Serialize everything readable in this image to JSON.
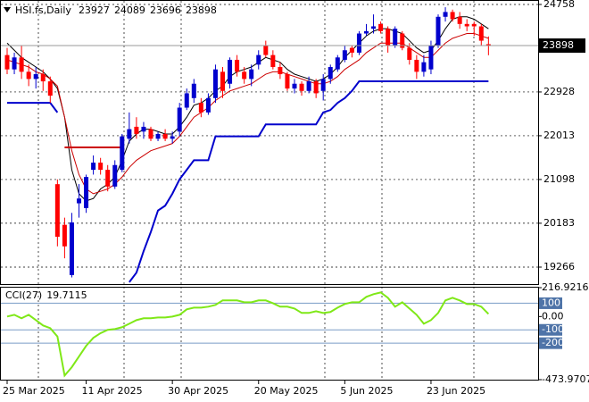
{
  "chart_data": {
    "type": "candlestick",
    "title": "HSI.fs,Daily",
    "categories": [
      "25 Mar 2025",
      null,
      null,
      null,
      null,
      null,
      null,
      null,
      null,
      null,
      null,
      "11 Apr 2025",
      null,
      null,
      null,
      null,
      null,
      null,
      null,
      null,
      null,
      null,
      null,
      "30 Apr 2025",
      null,
      null,
      null,
      null,
      null,
      null,
      null,
      null,
      null,
      null,
      null,
      "20 May 2025",
      null,
      null,
      null,
      null,
      null,
      null,
      null,
      null,
      null,
      null,
      null,
      "5 Jun 2025",
      null,
      null,
      null,
      null,
      null,
      null,
      null,
      null,
      null,
      null,
      null,
      "23 Jun 2025",
      null,
      null,
      null,
      null,
      null,
      null,
      null,
      null
    ],
    "open": [
      23700,
      23400,
      23650,
      23350,
      23200,
      23300,
      23150,
      21000,
      20150,
      19100,
      20600,
      20500,
      21300,
      21450,
      21300,
      20950,
      21300,
      21950,
      22200,
      22100,
      22150,
      21950,
      22050,
      21950,
      22100,
      22600,
      22800,
      22700,
      22500,
      22800,
      23350,
      23100,
      23600,
      23350,
      23200,
      23500,
      23900,
      23700,
      23450,
      23300,
      23000,
      23100,
      22950,
      23150,
      22950,
      23200,
      23400,
      23600,
      23850,
      23750,
      24150,
      24250,
      24350,
      24250,
      23900,
      24150,
      23850,
      23600,
      23350,
      23400,
      23900,
      24500,
      24600,
      24500,
      24350,
      24350,
      24300,
      23927
    ],
    "high": [
      23850,
      23750,
      23900,
      23500,
      23450,
      23400,
      23250,
      21100,
      20300,
      20400,
      21000,
      21200,
      21600,
      21550,
      21400,
      21500,
      22050,
      22500,
      22400,
      22300,
      22200,
      22100,
      22150,
      22100,
      22700,
      23000,
      23200,
      22800,
      22900,
      23500,
      23450,
      23650,
      23700,
      23450,
      23500,
      23800,
      24000,
      23800,
      23550,
      23350,
      23200,
      23150,
      23250,
      23200,
      23300,
      23500,
      23700,
      23900,
      23900,
      24200,
      24350,
      24550,
      24400,
      24300,
      24300,
      24200,
      23950,
      23700,
      23700,
      24000,
      24550,
      24700,
      24650,
      24600,
      24450,
      24400,
      24350,
      24089
    ],
    "low": [
      23300,
      23300,
      23200,
      23050,
      23000,
      22950,
      22700,
      19700,
      19450,
      19050,
      20300,
      20400,
      21200,
      21200,
      20850,
      20900,
      21250,
      21850,
      21950,
      21950,
      21900,
      21900,
      21900,
      21850,
      22000,
      22550,
      22700,
      22400,
      22450,
      22700,
      22800,
      23000,
      23250,
      23100,
      23050,
      23400,
      23650,
      23400,
      23200,
      22950,
      22900,
      22850,
      22900,
      22800,
      22750,
      23100,
      23350,
      23550,
      23650,
      23700,
      24100,
      24150,
      24150,
      23750,
      23850,
      23800,
      23500,
      23200,
      23250,
      23300,
      23850,
      24400,
      24400,
      24250,
      24200,
      24100,
      23900,
      23696
    ],
    "close": [
      23400,
      23650,
      23350,
      23200,
      23300,
      23150,
      22850,
      19900,
      19700,
      20200,
      20700,
      21150,
      21450,
      21300,
      20950,
      21400,
      22000,
      22150,
      22050,
      22200,
      21950,
      22050,
      21950,
      22000,
      22600,
      22900,
      23100,
      22500,
      22800,
      23400,
      22950,
      23600,
      23350,
      23200,
      23400,
      23700,
      23700,
      23450,
      23300,
      23000,
      23100,
      22950,
      23150,
      22900,
      23200,
      23450,
      23650,
      23800,
      23750,
      24150,
      24200,
      24300,
      24200,
      23900,
      24250,
      23850,
      23600,
      23350,
      23550,
      23900,
      24500,
      24600,
      24450,
      24350,
      24300,
      24300,
      24000,
      23898
    ],
    "up_color": "#0000cd",
    "down_color": "#ff0000",
    "series": [
      {
        "color": "#000000",
        "width": 1,
        "values": [
          23950,
          23800,
          23650,
          23550,
          23450,
          23350,
          23200,
          23000,
          22400,
          21300,
          20800,
          20650,
          20700,
          20900,
          21000,
          21150,
          21500,
          21900,
          22050,
          22150,
          22150,
          22100,
          22050,
          22050,
          22200,
          22400,
          22650,
          22700,
          22800,
          22950,
          23050,
          23250,
          23350,
          23400,
          23450,
          23550,
          23650,
          23600,
          23550,
          23400,
          23300,
          23250,
          23200,
          23150,
          23200,
          23300,
          23450,
          23650,
          23800,
          23950,
          24100,
          24200,
          24250,
          24250,
          24200,
          24150,
          24000,
          23850,
          23750,
          23800,
          24000,
          24250,
          24450,
          24500,
          24500,
          24450,
          24350,
          24250
        ]
      },
      {
        "color": "#cc0000",
        "width": 1,
        "values": [
          23600,
          23550,
          23500,
          23450,
          23350,
          23300,
          23200,
          23050,
          22400,
          21700,
          21200,
          20900,
          20800,
          20850,
          20900,
          21000,
          21150,
          21350,
          21500,
          21600,
          21700,
          21750,
          21800,
          21850,
          22000,
          22200,
          22400,
          22500,
          22600,
          22750,
          22850,
          22950,
          23000,
          23050,
          23100,
          23200,
          23300,
          23350,
          23350,
          23300,
          23250,
          23200,
          23150,
          23100,
          23100,
          23150,
          23250,
          23400,
          23500,
          23600,
          23750,
          23850,
          23950,
          23950,
          23950,
          23950,
          23850,
          23750,
          23650,
          23650,
          23800,
          23950,
          24050,
          24100,
          24150,
          24150,
          24100,
          24050
        ]
      },
      {
        "color": "#0000cc",
        "width": 2,
        "values": [
          22700,
          22700,
          22700,
          22700,
          22700,
          22700,
          22700,
          22500,
          null,
          null,
          null,
          null,
          null,
          null,
          null,
          null,
          null,
          18950,
          19150,
          19600,
          20000,
          20450,
          20550,
          20800,
          21100,
          21300,
          21500,
          21500,
          21500,
          22000,
          22000,
          22000,
          22000,
          22000,
          22000,
          22000,
          22250,
          22250,
          22250,
          22250,
          22250,
          22250,
          22250,
          22250,
          22500,
          22550,
          22700,
          22800,
          22950,
          23150,
          23150,
          23150,
          23150,
          23150,
          23150,
          23150,
          23150,
          23150,
          23150,
          23150,
          23150,
          23150,
          23150,
          23150,
          23150,
          23150,
          23150,
          23150
        ]
      },
      {
        "color": "#cc0000",
        "width": 2,
        "values": [
          null,
          null,
          null,
          null,
          null,
          null,
          null,
          null,
          21770,
          21770,
          21770,
          21770,
          21770,
          21770,
          21770,
          21770,
          21770,
          null,
          null,
          null,
          null,
          null,
          null,
          null,
          null,
          null,
          null,
          null,
          null,
          null,
          null,
          null,
          null,
          null,
          null,
          null,
          null,
          null,
          null,
          null,
          null,
          null,
          null,
          null,
          null,
          null,
          null,
          null,
          null,
          null,
          null,
          null,
          null,
          null,
          null,
          null,
          null,
          null,
          null,
          null,
          null,
          null,
          null,
          null,
          null,
          null,
          null,
          null
        ]
      }
    ],
    "ylim": [
      18911,
      24851
    ],
    "yticks": [
      19266,
      20183,
      21098,
      22013,
      22928,
      24758
    ],
    "grid": true,
    "cci": {
      "name": "CCI(27)",
      "color": "#7fe817",
      "values": [
        0,
        13,
        -13,
        13,
        -27,
        -67,
        -87,
        -150,
        -443,
        -380,
        -300,
        -220,
        -160,
        -125,
        -100,
        -94,
        -80,
        -54,
        -27,
        -13,
        -13,
        -7,
        -7,
        0,
        13,
        54,
        67,
        67,
        74,
        87,
        121,
        121,
        121,
        107,
        107,
        121,
        121,
        100,
        74,
        74,
        60,
        27,
        27,
        40,
        27,
        34,
        67,
        94,
        107,
        107,
        148,
        168,
        181,
        141,
        74,
        107,
        60,
        13,
        -54,
        -27,
        27,
        121,
        141,
        121,
        94,
        94,
        74,
        19.7115
      ],
      "ylim": [
        -473.9707,
        216.9216
      ],
      "yticks": [
        216.9216,
        100,
        {
          "value": 0,
          "label": "0.00"
        },
        -100,
        -200,
        -473.9707
      ],
      "levels": [
        100,
        -100,
        -200
      ]
    }
  }
}
